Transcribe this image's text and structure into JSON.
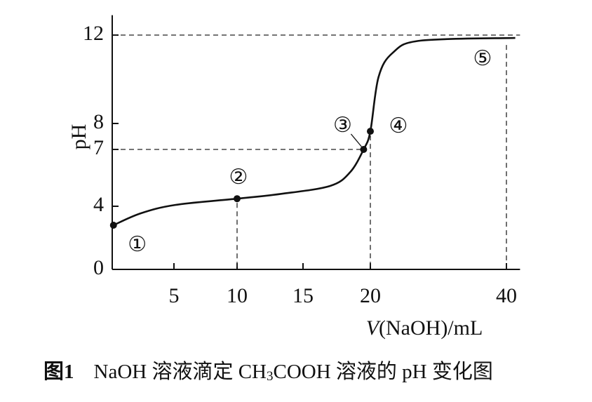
{
  "chart_data": {
    "type": "line",
    "x_label_parts": [
      "V",
      "(NaOH)/mL"
    ],
    "y_label": "pH",
    "figure_label": "图1",
    "caption_parts": [
      "NaOH 溶液滴定 CH",
      "3",
      "COOH 溶液的 pH 变化图"
    ],
    "xlim": [
      0,
      42
    ],
    "xticks": [
      5,
      10,
      15,
      20,
      40
    ],
    "ylim": [
      0,
      12.9
    ],
    "yticks": [
      0,
      4,
      7,
      8,
      12
    ],
    "series": [
      {
        "name": "curve",
        "color": "#111111",
        "x": [
          0.1,
          2.3,
          5.1,
          10,
          13.3,
          17.0,
          18.5,
          19.5,
          20,
          21.2,
          23.3,
          27.4,
          41.3
        ],
        "values": [
          2.8,
          3.55,
          4.07,
          4.4,
          4.65,
          5.07,
          5.8,
          7,
          7.7,
          10.1,
          11.2,
          11.75,
          11.87
        ]
      },
      {
        "name": "points",
        "color": "#111111",
        "x": [
          0.1,
          10,
          19.5,
          20,
          40
        ],
        "values": [
          2.8,
          4.4,
          7,
          7.7,
          11.87
        ],
        "labels": [
          "①",
          "②",
          "③",
          "④",
          "⑤"
        ]
      }
    ]
  }
}
